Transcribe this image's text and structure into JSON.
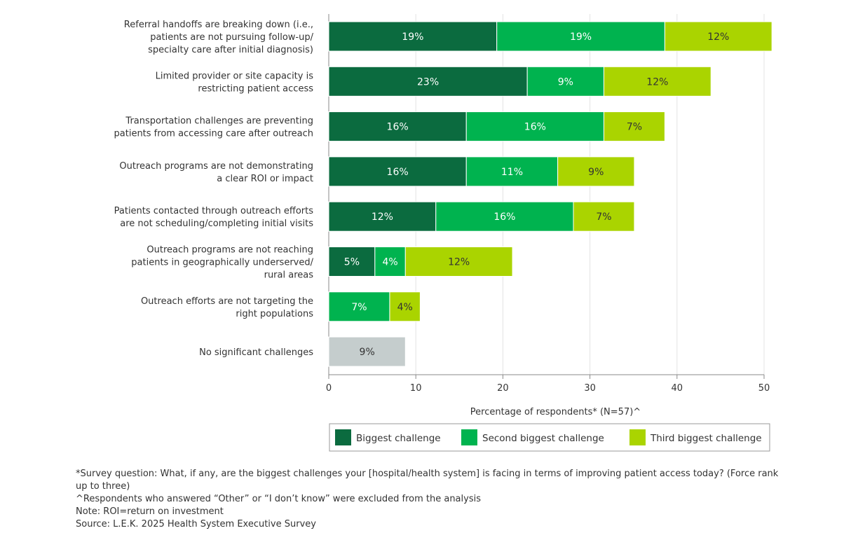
{
  "chart_data": {
    "type": "bar",
    "orientation": "horizontal",
    "stacked": true,
    "categories": [
      [
        "Referral handoffs are breaking down (i.e.,",
        "patients are not pursuing follow-up/",
        "specialty care after initial diagnosis)"
      ],
      [
        "Limited provider or site capacity is",
        "restricting patient access"
      ],
      [
        "Transportation challenges are preventing",
        "patients from accessing care after outreach"
      ],
      [
        "Outreach programs are not demonstrating",
        "a clear ROI or impact"
      ],
      [
        "Patients contacted through outreach efforts",
        "are not scheduling/completing initial visits"
      ],
      [
        "Outreach programs are not reaching",
        "patients in geographically underserved/",
        "rural areas"
      ],
      [
        "Outreach efforts are not targeting the",
        "right populations"
      ],
      [
        "No significant challenges"
      ]
    ],
    "series": [
      {
        "name": "Biggest challenge",
        "color": "#0b6b3f",
        "values": [
          19.3,
          22.8,
          15.8,
          15.8,
          12.3,
          5.3,
          0,
          0
        ],
        "labels": [
          "19%",
          "23%",
          "16%",
          "16%",
          "12%",
          "5%",
          "",
          ""
        ]
      },
      {
        "name": "Second biggest challenge",
        "color": "#00b34f",
        "values": [
          19.3,
          8.8,
          15.8,
          10.5,
          15.8,
          3.5,
          7.0,
          0
        ],
        "labels": [
          "19%",
          "9%",
          "16%",
          "11%",
          "16%",
          "4%",
          "7%",
          ""
        ]
      },
      {
        "name": "Third biggest challenge",
        "color": "#aad400",
        "values": [
          12.3,
          12.3,
          7.0,
          8.8,
          7.0,
          12.3,
          3.5,
          0
        ],
        "labels": [
          "12%",
          "12%",
          "7%",
          "9%",
          "7%",
          "12%",
          "4%",
          ""
        ]
      }
    ],
    "other": {
      "color": "#c5cdcd",
      "values": [
        0,
        0,
        0,
        0,
        0,
        0,
        0,
        8.8
      ],
      "labels": [
        "",
        "",
        "",
        "",
        "",
        "",
        "",
        "9%"
      ]
    },
    "xlabel": "Percentage of respondents* (N=57)^",
    "xlim": [
      0,
      50
    ],
    "xticks": [
      0,
      10,
      20,
      30,
      40,
      50
    ],
    "grid": true,
    "legend_placement": "bottom"
  },
  "footnotes": [
    "*Survey question: What, if any, are the biggest challenges your [hospital/health system] is facing in terms of improving patient access today? (Force rank up to three)",
    "^Respondents who answered “Other” or “I don’t know” were excluded from the analysis",
    "Note: ROI=return on investment",
    "Source: L.E.K. 2025 Health System Executive Survey"
  ]
}
